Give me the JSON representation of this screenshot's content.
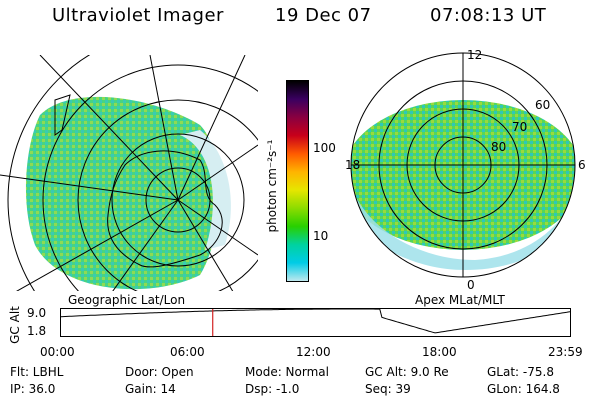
{
  "header": {
    "title": "Ultraviolet Imager",
    "date": "19 Dec 07",
    "time": "07:08:13 UT"
  },
  "colorbar": {
    "label": "photon cm⁻²s⁻¹",
    "ticks": [
      "100",
      "10"
    ],
    "colors": [
      "#000000",
      "#3a0060",
      "#8a0040",
      "#c8001a",
      "#ff5a00",
      "#ffb400",
      "#e6e600",
      "#8cdc00",
      "#28d000",
      "#00d2a0",
      "#00cce6",
      "#bfe8ee"
    ]
  },
  "left_map": {
    "caption": "Geographic Lat/Lon"
  },
  "right_map": {
    "caption": "Apex MLat/MLT",
    "labels": {
      "top": "12",
      "bottom": "0",
      "left": "18",
      "right": "6",
      "lat60": "60",
      "lat70": "70",
      "lat80": "80"
    }
  },
  "timeline": {
    "ylabel": "GC Alt",
    "yticks": [
      "9.0",
      "1.8"
    ],
    "xticks": [
      "00:00",
      "06:00",
      "12:00",
      "18:00",
      "23:59"
    ],
    "marker_hour": 7.14,
    "marker_color": "#d22222"
  },
  "info": {
    "filter": "Flt: LBHL",
    "ip": "IP: 36.0",
    "door": "Door: Open",
    "gain": "Gain: 14",
    "mode": "Mode: Normal",
    "dsp": "Dsp:   -1.0",
    "gcalt": "GC Alt: 9.0 Re",
    "seq": "Seq: 39",
    "glat": "GLat: -75.8",
    "glon": "GLon: 164.8"
  }
}
